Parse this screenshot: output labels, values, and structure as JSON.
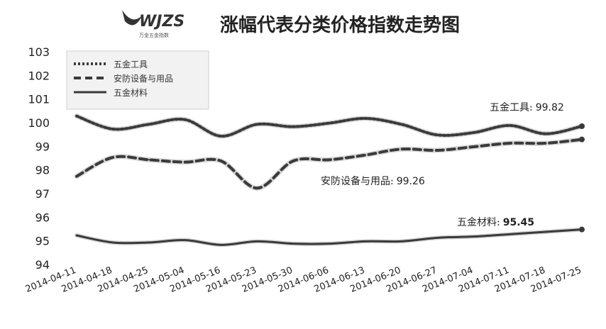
{
  "header": {
    "logo_text": "WJZS",
    "logo_subtext": "万金五金指数",
    "title": "涨幅代表分类价格指数走势图"
  },
  "colors": {
    "series_main": "#3a3a3a",
    "series_outline": "#8a8a8a",
    "logo": "#333333",
    "background": "#ffffff"
  },
  "chart_data": {
    "type": "line",
    "title": "涨幅代表分类价格指数走势图",
    "xlabel": "",
    "ylabel": "",
    "ylim": [
      94,
      103
    ],
    "yticks": [
      94,
      95,
      96,
      97,
      98,
      99,
      100,
      101,
      102,
      103
    ],
    "grid": false,
    "legend_position": "top-left",
    "categories": [
      "2014-04-11",
      "2014-04-18",
      "2014-04-25",
      "2014-05-04",
      "2014-05-16",
      "2014-05-23",
      "2014-05-30",
      "2014-06-06",
      "2014-06-13",
      "2014-06-20",
      "2014-06-27",
      "2014-07-04",
      "2014-07-11",
      "2014-07-18",
      "2014-07-25"
    ],
    "series": [
      {
        "name": "五金工具",
        "style": "dotted",
        "values": [
          100.25,
          99.7,
          99.9,
          100.1,
          99.4,
          99.9,
          99.8,
          99.95,
          100.15,
          99.9,
          99.45,
          99.55,
          99.85,
          99.5,
          99.82
        ]
      },
      {
        "name": "安防设备与用品",
        "style": "dashed",
        "values": [
          97.7,
          98.5,
          98.4,
          98.3,
          98.35,
          97.2,
          98.35,
          98.4,
          98.6,
          98.85,
          98.8,
          98.95,
          99.1,
          99.1,
          99.26
        ]
      },
      {
        "name": "五金材料",
        "style": "solid",
        "values": [
          95.2,
          94.9,
          94.9,
          95.0,
          94.8,
          94.95,
          94.85,
          94.85,
          94.95,
          94.95,
          95.1,
          95.15,
          95.25,
          95.35,
          95.45
        ]
      }
    ],
    "annotations": [
      {
        "series": "五金工具",
        "label": "五金工具:",
        "value": "99.82"
      },
      {
        "series": "安防设备与用品",
        "label": "安防设备与用品:",
        "value": "99.26"
      },
      {
        "series": "五金材料",
        "label": "五金材料:",
        "value": "95.45"
      }
    ]
  }
}
